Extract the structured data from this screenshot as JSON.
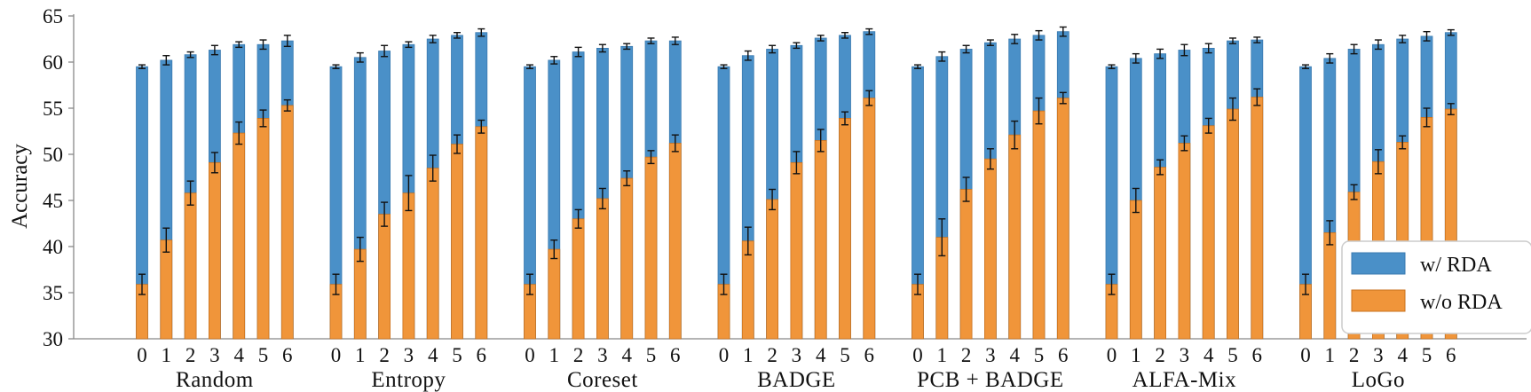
{
  "chart_data": {
    "type": "bar",
    "ylabel": "Accuracy",
    "ylim": [
      30,
      65
    ],
    "yticks": [
      30,
      35,
      40,
      45,
      50,
      55,
      60,
      65
    ],
    "xtick_labels": [
      "0",
      "1",
      "2",
      "3",
      "4",
      "5",
      "6"
    ],
    "legend": {
      "placement": "bottom-right",
      "entries": [
        "w/ RDA",
        "w/o RDA"
      ]
    },
    "colors": {
      "w/ RDA": "#4a90c8",
      "w/o RDA": "#f0953a"
    },
    "grid": false,
    "groups": [
      {
        "name": "Random",
        "with_rda": [
          59.5,
          60.2,
          60.8,
          61.3,
          61.9,
          61.9,
          62.3
        ],
        "with_rda_err": [
          0.2,
          0.5,
          0.3,
          0.5,
          0.3,
          0.5,
          0.6
        ],
        "without_rda": [
          35.9,
          40.7,
          45.8,
          49.1,
          52.3,
          53.9,
          55.3
        ],
        "without_rda_err": [
          1.1,
          1.3,
          1.3,
          1.1,
          1.2,
          0.9,
          0.6
        ]
      },
      {
        "name": "Entropy",
        "with_rda": [
          59.5,
          60.5,
          61.2,
          61.9,
          62.5,
          62.9,
          63.2
        ],
        "with_rda_err": [
          0.2,
          0.5,
          0.6,
          0.3,
          0.4,
          0.3,
          0.4
        ],
        "without_rda": [
          35.9,
          39.7,
          43.5,
          45.8,
          48.5,
          51.1,
          53.0
        ],
        "without_rda_err": [
          1.1,
          1.3,
          1.3,
          1.9,
          1.4,
          1.0,
          0.7
        ]
      },
      {
        "name": "Coreset",
        "with_rda": [
          59.5,
          60.2,
          61.1,
          61.5,
          61.7,
          62.3,
          62.3
        ],
        "with_rda_err": [
          0.2,
          0.4,
          0.5,
          0.4,
          0.3,
          0.3,
          0.4
        ],
        "without_rda": [
          35.9,
          39.7,
          43.0,
          45.2,
          47.4,
          49.7,
          51.2
        ],
        "without_rda_err": [
          1.1,
          1.0,
          1.0,
          1.1,
          0.8,
          0.7,
          0.9
        ]
      },
      {
        "name": "BADGE",
        "with_rda": [
          59.5,
          60.7,
          61.4,
          61.8,
          62.6,
          62.9,
          63.3
        ],
        "with_rda_err": [
          0.2,
          0.5,
          0.4,
          0.3,
          0.3,
          0.3,
          0.3
        ],
        "without_rda": [
          35.9,
          40.6,
          45.1,
          49.1,
          51.5,
          53.9,
          56.1
        ],
        "without_rda_err": [
          1.1,
          1.5,
          1.1,
          1.2,
          1.2,
          0.7,
          0.8
        ]
      },
      {
        "name": "PCB + BADGE",
        "with_rda": [
          59.5,
          60.6,
          61.4,
          62.1,
          62.5,
          62.9,
          63.3
        ],
        "with_rda_err": [
          0.2,
          0.5,
          0.4,
          0.3,
          0.5,
          0.5,
          0.5
        ],
        "without_rda": [
          35.9,
          41.0,
          46.2,
          49.5,
          52.1,
          54.7,
          56.1
        ],
        "without_rda_err": [
          1.1,
          2.0,
          1.3,
          1.1,
          1.5,
          1.4,
          0.6
        ]
      },
      {
        "name": "ALFA-Mix",
        "with_rda": [
          59.5,
          60.4,
          60.9,
          61.3,
          61.5,
          62.3,
          62.4
        ],
        "with_rda_err": [
          0.2,
          0.5,
          0.5,
          0.6,
          0.5,
          0.3,
          0.3
        ],
        "without_rda": [
          35.9,
          45.0,
          48.6,
          51.2,
          53.1,
          54.9,
          56.2
        ],
        "without_rda_err": [
          1.1,
          1.3,
          0.8,
          0.8,
          0.8,
          1.2,
          0.9
        ]
      },
      {
        "name": "LoGo",
        "with_rda": [
          59.5,
          60.4,
          61.4,
          61.9,
          62.5,
          62.8,
          63.2
        ],
        "with_rda_err": [
          0.2,
          0.5,
          0.5,
          0.5,
          0.4,
          0.5,
          0.3
        ],
        "without_rda": [
          35.9,
          41.5,
          45.9,
          49.2,
          51.3,
          54.0,
          54.9
        ],
        "without_rda_err": [
          1.1,
          1.3,
          0.8,
          1.3,
          0.7,
          1.0,
          0.6
        ]
      }
    ]
  }
}
